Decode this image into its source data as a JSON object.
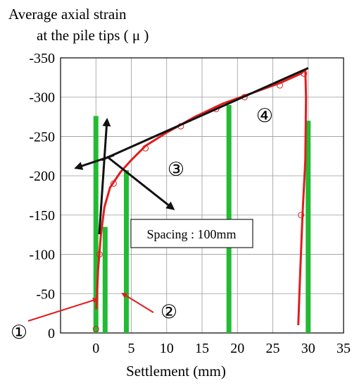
{
  "chart_data": {
    "type": "line",
    "ylabel_line1": "Average axial strain",
    "ylabel_line2": "at the pile tips ( μ )",
    "xlabel": "Settlement (mm)",
    "x_ticks": [
      "0",
      "5",
      "10",
      "15",
      "20",
      "25",
      "30",
      "35"
    ],
    "y_ticks": [
      "-350",
      "-300",
      "-250",
      "-200",
      "-150",
      "-100",
      "-50",
      "0"
    ],
    "xlim": [
      -5,
      35
    ],
    "ylim": [
      0,
      -350
    ],
    "y_axis_reversed": true,
    "grid": true,
    "colors": {
      "curve": "#e11d1d",
      "bars": "#22bb33",
      "trend": "#111111",
      "arrows": "#e11d1d"
    },
    "curve": {
      "loading": [
        [
          0.05,
          -30
        ],
        [
          0.3,
          -80
        ],
        [
          0.7,
          -125
        ],
        [
          1.2,
          -160
        ],
        [
          2,
          -185
        ],
        [
          3.5,
          -205
        ],
        [
          5,
          -220
        ],
        [
          7,
          -238
        ],
        [
          10,
          -255
        ],
        [
          14,
          -275
        ],
        [
          18,
          -292
        ],
        [
          22,
          -305
        ],
        [
          26,
          -318
        ],
        [
          29,
          -330
        ],
        [
          29.6,
          -335
        ]
      ],
      "unloading": [
        [
          29.6,
          -335
        ],
        [
          29.7,
          -300
        ],
        [
          29.6,
          -220
        ],
        [
          29.2,
          -150
        ],
        [
          28.8,
          -60
        ],
        [
          28.6,
          -10
        ]
      ]
    },
    "markers": [
      [
        0,
        -5
      ],
      [
        0.5,
        -100
      ],
      [
        2.5,
        -190
      ],
      [
        7,
        -235
      ],
      [
        12,
        -263
      ],
      [
        17,
        -285
      ],
      [
        21,
        -300
      ],
      [
        26,
        -315
      ],
      [
        29.4,
        -330
      ],
      [
        29,
        -150
      ]
    ],
    "bars": [
      {
        "x": 0,
        "value": -276
      },
      {
        "x": 1.3,
        "value": -135
      },
      {
        "x": 4.3,
        "value": -207
      },
      {
        "x": 18.8,
        "value": -290
      },
      {
        "x": 30,
        "value": -270
      }
    ],
    "trend_line": [
      [
        0.8,
        -220
      ],
      [
        30,
        -337
      ]
    ],
    "annotations": {
      "spacing_box": "Spacing : 100mm",
      "phase_labels": [
        "①",
        "②",
        "③",
        "④"
      ]
    }
  }
}
